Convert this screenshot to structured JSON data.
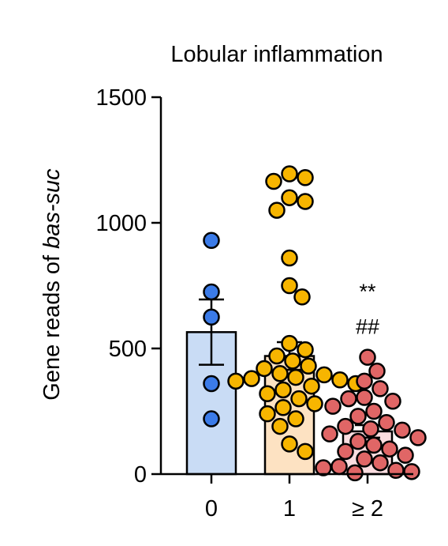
{
  "chart_data": {
    "type": "bar",
    "title": "Lobular inflammation",
    "ylabel_prefix": "Gene reads of ",
    "ylabel_italic": "bas-suc",
    "categories": [
      "0",
      "1",
      "≥  2"
    ],
    "ylim": [
      0,
      1500
    ],
    "yticks": [
      0,
      500,
      1000,
      1500
    ],
    "grid": false,
    "legend": "none",
    "bars": [
      {
        "category": "0",
        "mean": 565,
        "sem": 130,
        "fill": "#c9dcf5",
        "point_color": "#3b7be8",
        "points": [
          930,
          725,
          625,
          360,
          220
        ]
      },
      {
        "category": "1",
        "mean": 470,
        "sem": 55,
        "fill": "#fde2c2",
        "point_color": "#f7b500",
        "points": [
          1195,
          1180,
          1165,
          1100,
          1085,
          1050,
          860,
          750,
          705,
          520,
          495,
          470,
          450,
          430,
          420,
          400,
          395,
          385,
          380,
          375,
          370,
          360,
          350,
          335,
          320,
          300,
          280,
          265,
          240,
          220,
          190,
          120,
          90
        ]
      },
      {
        "category": "≥  2",
        "mean": 170,
        "sem": 25,
        "fill": "#fbdde0",
        "point_color": "#e06666",
        "points": [
          465,
          410,
          370,
          340,
          305,
          300,
          290,
          270,
          250,
          230,
          205,
          190,
          180,
          175,
          160,
          145,
          130,
          115,
          100,
          90,
          75,
          60,
          45,
          30,
          25,
          15,
          10,
          5
        ]
      }
    ],
    "annotations": [
      {
        "category": "≥  2",
        "text": "**",
        "y": 730
      },
      {
        "category": "≥  2",
        "text": "##",
        "y": 590
      }
    ]
  }
}
